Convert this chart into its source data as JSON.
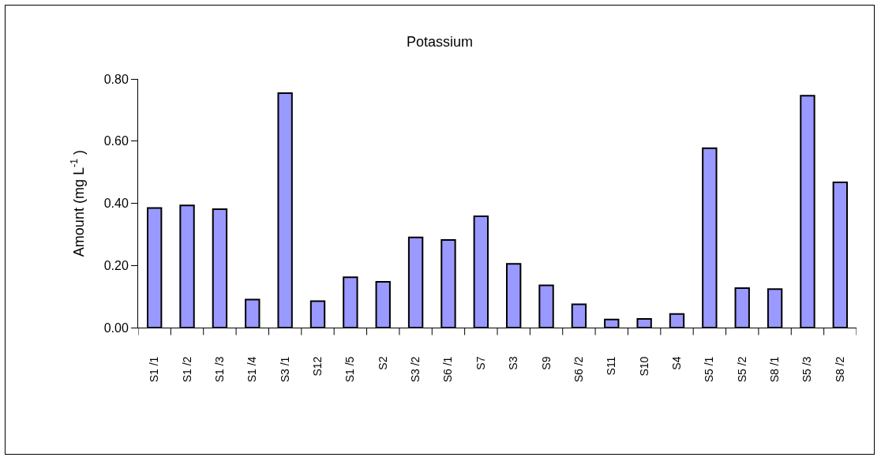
{
  "chart_data": {
    "type": "bar",
    "title": "Potassium",
    "ylabel": "Amount (mg L$^{-1}$ )",
    "categories": [
      "S1 /1",
      "S1 /2",
      "S1 /3",
      "S1 /4",
      "S3 /1",
      "S12",
      "S1 /5",
      "S2",
      "S3 /2",
      "S6 /1",
      "S7",
      "S3",
      "S9",
      "S6 /2",
      "S11",
      "S10",
      "S4",
      "S5 /1",
      "S5 /2",
      "S8 /1",
      "S5 /3",
      "S8 /2"
    ],
    "values": [
      0.385,
      0.393,
      0.381,
      0.09,
      0.754,
      0.085,
      0.162,
      0.147,
      0.29,
      0.282,
      0.358,
      0.205,
      0.136,
      0.075,
      0.026,
      0.028,
      0.044,
      0.577,
      0.127,
      0.124,
      0.746,
      0.467
    ],
    "color": "#9999ff",
    "ylim": [
      0,
      0.8
    ],
    "yticks": [
      {
        "value": 0,
        "label": "0.00"
      },
      {
        "value": 0.2,
        "label": "0.20"
      },
      {
        "value": 0.4,
        "label": "0.40"
      },
      {
        "value": 0.6,
        "label": "0.60"
      },
      {
        "value": 0.8,
        "label": "0.80"
      }
    ],
    "grid": false,
    "legend": false
  }
}
